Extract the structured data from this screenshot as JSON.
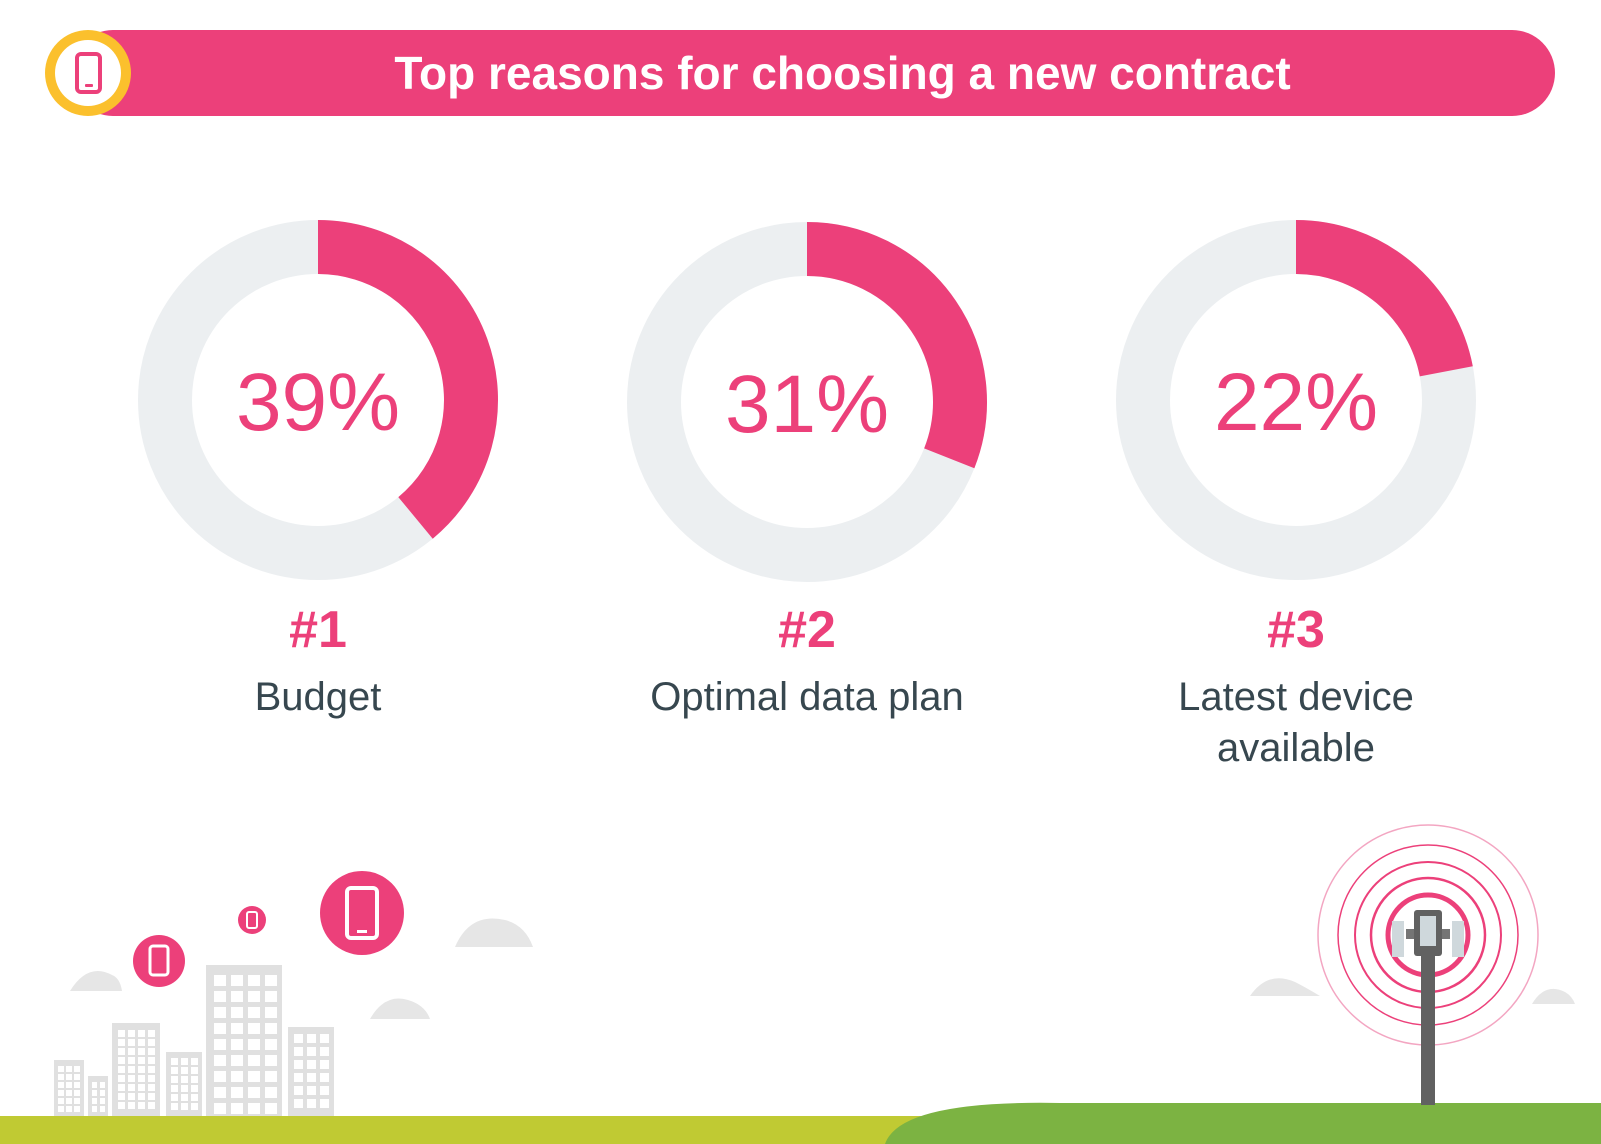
{
  "title": "Top reasons for choosing a new contract",
  "colors": {
    "accent": "#ec407a",
    "ring_track": "#eceff1",
    "badge": "#fbc02d",
    "text_dark": "#37474f",
    "ground_light": "#c0ca33",
    "ground_dark": "#7cb342",
    "building": "#e0e0e0"
  },
  "icons": [
    "smartphone-icon",
    "cloud-icon",
    "building-icon",
    "cell-tower-icon"
  ],
  "chart_data": [
    {
      "type": "pie",
      "subtype": "donut",
      "value": 39,
      "label": "39%",
      "rank": "#1",
      "reason": "Budget"
    },
    {
      "type": "pie",
      "subtype": "donut",
      "value": 31,
      "label": "31%",
      "rank": "#2",
      "reason": "Optimal data plan"
    },
    {
      "type": "pie",
      "subtype": "donut",
      "value": 22,
      "label": "22%",
      "rank": "#3",
      "reason": "Latest device available"
    }
  ]
}
